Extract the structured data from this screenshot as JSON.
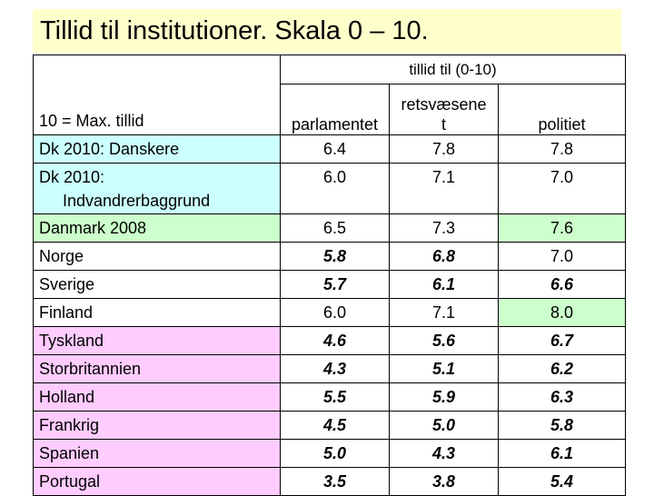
{
  "title": "Tillid til institutioner. Skala 0 – 10.",
  "header": {
    "group_label": "tillid til (0-10)",
    "scale_note": "10 = Max. tillid",
    "columns": [
      "parlamentet",
      "retsvæsenet",
      "politiet"
    ],
    "column_display": {
      "parlamentet": "parlamentet",
      "retsvaesenet_line1": "retsvæsene",
      "retsvaesenet_line2": "t",
      "politiet": "politiet"
    }
  },
  "rows": [
    {
      "label": "Dk 2010: Danskere",
      "values": [
        "6.4",
        "7.8",
        "7.8"
      ],
      "color": "#ccffff",
      "bold": false
    },
    {
      "label_line1": "Dk 2010:",
      "label_line2": "Indvandrerbaggrund",
      "values": [
        "6.0",
        "7.1",
        "7.0"
      ],
      "color": "#ccffff",
      "bold": false
    },
    {
      "label": "Danmark 2008",
      "values": [
        "6.5",
        "7.3",
        "7.6"
      ],
      "color": "#ccffcc",
      "bold": false
    },
    {
      "label": "Norge",
      "values": [
        "5.8",
        "6.8",
        "7.0"
      ],
      "color": "#ccffcc",
      "bold": true
    },
    {
      "label": "Sverige",
      "values": [
        "5.7",
        "6.1",
        "6.6"
      ],
      "color": "#ccffcc",
      "bold": true
    },
    {
      "label": "Finland",
      "values": [
        "6.0",
        "7.1",
        "8.0"
      ],
      "color": "#ccffcc",
      "bold": false
    },
    {
      "label": "Tyskland",
      "values": [
        "4.6",
        "5.6",
        "6.7"
      ],
      "color": "#ffccff",
      "bold": true
    },
    {
      "label": "Storbritannien",
      "values": [
        "4.3",
        "5.1",
        "6.2"
      ],
      "color": "#ffccff",
      "bold": true
    },
    {
      "label": "Holland",
      "values": [
        "5.5",
        "5.9",
        "6.3"
      ],
      "color": "#ffccff",
      "bold": true
    },
    {
      "label": "Frankrig",
      "values": [
        "4.5",
        "5.0",
        "5.8"
      ],
      "color": "#ffccff",
      "bold": true
    },
    {
      "label": "Spanien",
      "values": [
        "5.0",
        "4.3",
        "6.1"
      ],
      "color": "#ffccff",
      "bold": true
    },
    {
      "label": "Portugal",
      "values": [
        "3.5",
        "3.8",
        "5.4"
      ],
      "color": "#ffccff",
      "bold": true
    }
  ]
}
